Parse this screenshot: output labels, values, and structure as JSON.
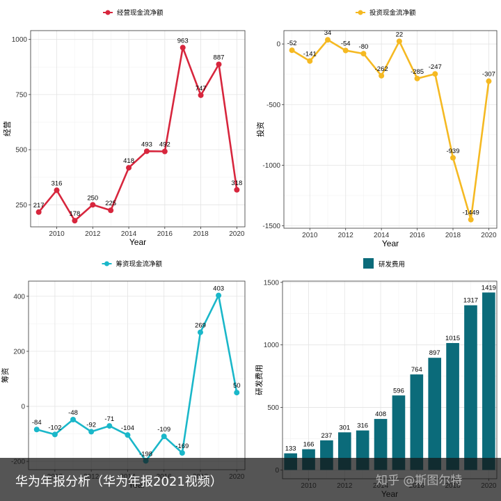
{
  "chart_data": [
    {
      "type": "line",
      "legend": "经营现金流净额",
      "color": "#d7263d",
      "xlabel": "Year",
      "ylabel": "经营",
      "x": [
        2009,
        2010,
        2011,
        2012,
        2013,
        2014,
        2015,
        2016,
        2017,
        2018,
        2019,
        2020
      ],
      "values": [
        217,
        316,
        178,
        250,
        225,
        418,
        493,
        492,
        963,
        747,
        887,
        318
      ],
      "labels": [
        "217",
        "316",
        "178",
        "250",
        "225",
        "418",
        "493",
        "492",
        "963",
        "747",
        "887",
        "318"
      ],
      "xticks": [
        "2010",
        "2012",
        "2014",
        "2016",
        "2018",
        "2020"
      ],
      "yticks": [
        250,
        500,
        750,
        1000
      ],
      "ylim": [
        150,
        1040
      ]
    },
    {
      "type": "line",
      "legend": "投资现金流净额",
      "color": "#f5b922",
      "xlabel": "Year",
      "ylabel": "投资",
      "x": [
        2009,
        2010,
        2011,
        2012,
        2013,
        2014,
        2015,
        2016,
        2017,
        2018,
        2019,
        2020
      ],
      "values": [
        -52,
        -141,
        34,
        -54,
        -80,
        -262,
        22,
        -285,
        -247,
        -939,
        -1449,
        -307
      ],
      "labels": [
        "-52",
        "-141",
        "34",
        "-54",
        "-80",
        "-262",
        "22",
        "-285",
        "-247",
        "-939",
        "-1449",
        "-307"
      ],
      "xticks": [
        "2010",
        "2012",
        "2014",
        "2016",
        "2018",
        "2020"
      ],
      "yticks": [
        -1500,
        -1000,
        -500,
        0
      ],
      "ylim": [
        -1520,
        110
      ]
    },
    {
      "type": "line",
      "legend": "筹资现金流净额",
      "color": "#1ab7c9",
      "xlabel": "Year",
      "ylabel": "筹资",
      "x": [
        2009,
        2010,
        2011,
        2012,
        2013,
        2014,
        2015,
        2016,
        2017,
        2018,
        2019,
        2020
      ],
      "values": [
        -84,
        -102,
        -48,
        -92,
        -71,
        -104,
        -198,
        -109,
        -169,
        269,
        403,
        50
      ],
      "labels": [
        "-84",
        "-102",
        "-48",
        "-92",
        "-71",
        "-104",
        "-198",
        "-109",
        "-169",
        "269",
        "403",
        "50"
      ],
      "xticks": [
        "2010",
        "2012",
        "2014",
        "2016",
        "2018",
        "2020"
      ],
      "yticks": [
        -200,
        0,
        200,
        400
      ],
      "ylim": [
        -230,
        455
      ]
    },
    {
      "type": "bar",
      "legend": "研发费用",
      "color": "#0b6b7a",
      "xlabel": "Year",
      "ylabel": "研发费用",
      "x": [
        2009,
        2010,
        2011,
        2012,
        2013,
        2014,
        2015,
        2016,
        2017,
        2018,
        2019,
        2020
      ],
      "values": [
        133,
        166,
        237,
        301,
        316,
        408,
        596,
        764,
        897,
        1015,
        1317,
        1419
      ],
      "labels": [
        "133",
        "166",
        "237",
        "301",
        "316",
        "408",
        "596",
        "764",
        "897",
        "1015",
        "1317",
        "1419"
      ],
      "xticks": [
        "2010",
        "2012",
        "2014",
        "2016",
        "2018",
        "2020"
      ],
      "yticks": [
        0,
        500,
        1000,
        1500
      ],
      "ylim": [
        -70,
        1510
      ]
    }
  ],
  "caption": "华为年报分析（华为年报2021视频）",
  "watermark": "知乎 @斯图尔特"
}
